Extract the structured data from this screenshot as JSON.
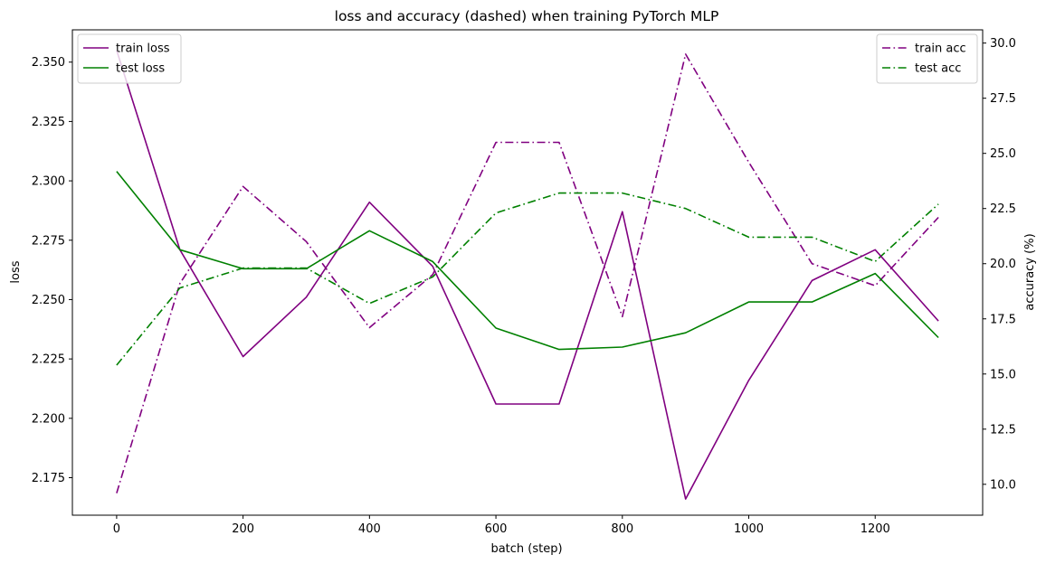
{
  "chart_data": {
    "type": "line",
    "title": "loss and accuracy (dashed) when training PyTorch MLP",
    "xlabel": "batch (step)",
    "ylabel_left": "loss",
    "ylabel_right": "accuracy (%)",
    "x": [
      0,
      100,
      200,
      300,
      400,
      500,
      600,
      700,
      800,
      900,
      1000,
      1100,
      1200,
      1300
    ],
    "xlim": [
      -70,
      1370
    ],
    "x_ticks": [
      0,
      200,
      400,
      600,
      800,
      1000,
      1200
    ],
    "ylim_left": [
      2.1592,
      2.3636
    ],
    "y_ticks_left": [
      "2.175",
      "2.200",
      "2.225",
      "2.250",
      "2.275",
      "2.300",
      "2.325",
      "2.350"
    ],
    "ylim_right": [
      8.6,
      30.6
    ],
    "y_ticks_right": [
      "10.0",
      "12.5",
      "15.0",
      "17.5",
      "20.0",
      "22.5",
      "25.0",
      "27.5",
      "30.0"
    ],
    "grid": false,
    "legend_left": "top-left",
    "legend_right": "top-right",
    "loss_series": [
      {
        "name": "train loss",
        "color": "#800080",
        "style": "solid",
        "values": [
          2.355,
          2.271,
          2.226,
          2.251,
          2.291,
          2.264,
          2.206,
          2.206,
          2.287,
          2.166,
          2.216,
          2.258,
          2.271,
          2.241
        ]
      },
      {
        "name": "test loss",
        "color": "#008000",
        "style": "solid",
        "values": [
          2.304,
          2.271,
          2.263,
          2.263,
          2.279,
          2.266,
          2.238,
          2.229,
          2.23,
          2.236,
          2.249,
          2.249,
          2.261,
          2.234
        ]
      }
    ],
    "acc_series": [
      {
        "name": "train acc",
        "color": "#800080",
        "style": "dashdot",
        "values": [
          9.6,
          19.1,
          23.5,
          21.0,
          17.1,
          19.5,
          25.5,
          25.5,
          17.6,
          29.5,
          24.6,
          20.0,
          19.0,
          22.1
        ]
      },
      {
        "name": "test acc",
        "color": "#008000",
        "style": "dashdot",
        "values": [
          15.4,
          18.9,
          19.8,
          19.8,
          18.2,
          19.4,
          22.3,
          23.2,
          23.2,
          22.5,
          21.2,
          21.2,
          20.1,
          22.7
        ]
      }
    ]
  }
}
